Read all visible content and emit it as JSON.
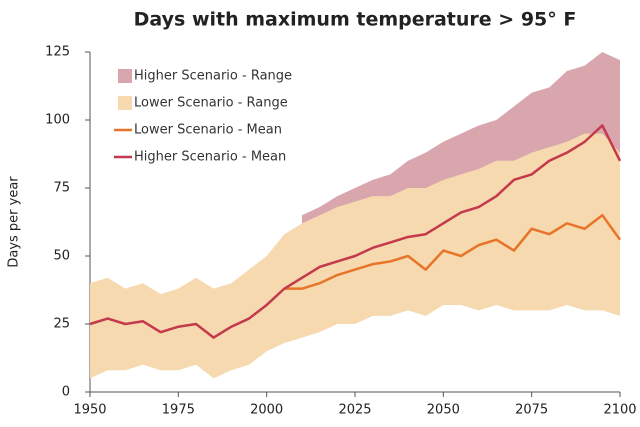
{
  "chart_data": {
    "type": "line",
    "title": "Days with maximum temperature > 95° F",
    "y_label": "Days per year",
    "x": [
      1950,
      1955,
      1960,
      1965,
      1970,
      1975,
      1980,
      1985,
      1990,
      1995,
      2000,
      2005,
      2010,
      2015,
      2020,
      2025,
      2030,
      2035,
      2040,
      2045,
      2050,
      2055,
      2060,
      2065,
      2070,
      2075,
      2080,
      2085,
      2090,
      2095,
      2100
    ],
    "series": [
      {
        "name": "Higher Scenario - Range",
        "color": "#d9a6ae",
        "low": [
          null,
          null,
          null,
          null,
          null,
          null,
          null,
          null,
          null,
          null,
          null,
          null,
          40,
          45,
          48,
          50,
          52,
          55,
          58,
          58,
          62,
          65,
          68,
          70,
          72,
          75,
          78,
          80,
          82,
          85,
          80
        ],
        "high": [
          null,
          null,
          null,
          null,
          null,
          null,
          null,
          null,
          null,
          null,
          null,
          null,
          65,
          68,
          72,
          75,
          78,
          80,
          85,
          88,
          92,
          95,
          98,
          100,
          105,
          110,
          112,
          118,
          120,
          125,
          122
        ]
      },
      {
        "name": "Lower Scenario - Range",
        "color": "#f6d9ae",
        "low": [
          5,
          8,
          8,
          10,
          8,
          8,
          10,
          5,
          8,
          10,
          15,
          18,
          20,
          22,
          25,
          25,
          28,
          28,
          30,
          28,
          32,
          32,
          30,
          32,
          30,
          30,
          30,
          32,
          30,
          30,
          28
        ],
        "high": [
          40,
          42,
          38,
          40,
          36,
          38,
          42,
          38,
          40,
          45,
          50,
          58,
          62,
          65,
          68,
          70,
          72,
          72,
          75,
          75,
          78,
          80,
          82,
          85,
          85,
          88,
          90,
          92,
          95,
          95,
          88
        ]
      },
      {
        "name": "Lower Scenario - Mean",
        "color": "#e8742a",
        "values": [
          null,
          null,
          null,
          null,
          null,
          null,
          null,
          null,
          null,
          null,
          null,
          38,
          38,
          40,
          43,
          45,
          47,
          48,
          50,
          45,
          52,
          50,
          54,
          56,
          52,
          60,
          58,
          62,
          60,
          65,
          56
        ]
      },
      {
        "name": "Higher Scenario - Mean",
        "color": "#c4394c",
        "values": [
          25,
          27,
          25,
          26,
          22,
          24,
          25,
          20,
          24,
          27,
          32,
          38,
          42,
          46,
          48,
          50,
          53,
          55,
          57,
          58,
          62,
          66,
          68,
          72,
          78,
          80,
          85,
          88,
          92,
          98,
          85
        ]
      }
    ],
    "xlim": [
      1950,
      2100
    ],
    "xticks": [
      1950,
      1975,
      2000,
      2025,
      2050,
      2075,
      2100
    ],
    "ylim": [
      0,
      125
    ],
    "yticks": [
      0,
      25,
      50,
      75,
      100,
      125
    ],
    "grid": false,
    "legend": "upper-left"
  }
}
